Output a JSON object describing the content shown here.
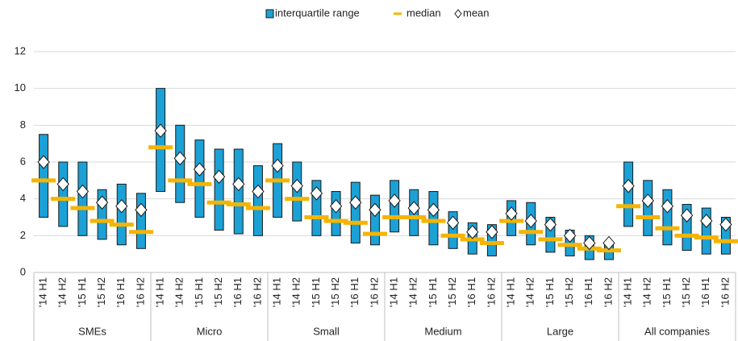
{
  "chart_data": {
    "type": "box",
    "ylim": [
      0,
      12
    ],
    "yticks": [
      0,
      2,
      4,
      6,
      8,
      10,
      12
    ],
    "grid": true,
    "groups": [
      {
        "name": "SMEs",
        "categories": [
          "'14 H1",
          "'14 H2",
          "'15 H1",
          "'15 H2",
          "'16 H1",
          "'16 H2"
        ]
      },
      {
        "name": "Micro",
        "categories": [
          "'14 H1",
          "'14 H2",
          "'15 H1",
          "'15 H2",
          "'16 H1",
          "'16 H2"
        ]
      },
      {
        "name": "Small",
        "categories": [
          "'14 H1",
          "'14 H2",
          "'15 H1",
          "'15 H2",
          "'16 H1",
          "'16 H2"
        ]
      },
      {
        "name": "Medium",
        "categories": [
          "'14 H1",
          "'14 H2",
          "'15 H1",
          "'15 H2",
          "'16 H1",
          "'16 H2"
        ]
      },
      {
        "name": "Large",
        "categories": [
          "'14 H1",
          "'14 H2",
          "'15 H1",
          "'15 H2",
          "'16 H1",
          "'16 H2"
        ]
      },
      {
        "name": "All companies",
        "categories": [
          "'14 H1",
          "'14 H2",
          "'15 H1",
          "'15 H2",
          "'16 H1",
          "'16 H2"
        ]
      }
    ],
    "series": [
      {
        "name": "interquartile range",
        "color": "#1ba1d6",
        "low": [
          3.0,
          2.5,
          2.0,
          1.8,
          1.5,
          1.3,
          4.4,
          3.8,
          3.0,
          2.3,
          2.1,
          2.0,
          3.0,
          2.8,
          2.0,
          2.0,
          1.6,
          1.5,
          2.2,
          2.0,
          1.5,
          1.3,
          1.0,
          0.9,
          2.0,
          1.5,
          1.1,
          0.9,
          0.7,
          0.7,
          2.5,
          2.0,
          1.5,
          1.2,
          1.0,
          1.0
        ],
        "high": [
          7.5,
          6.0,
          6.0,
          4.5,
          4.8,
          4.3,
          10.0,
          8.0,
          7.2,
          6.7,
          6.7,
          5.8,
          7.0,
          6.0,
          5.0,
          4.4,
          4.9,
          4.2,
          5.0,
          4.5,
          4.4,
          3.3,
          2.7,
          2.6,
          3.9,
          3.8,
          3.0,
          2.3,
          2.0,
          1.6,
          6.0,
          5.0,
          4.5,
          3.7,
          3.5,
          3.0
        ]
      },
      {
        "name": "median",
        "color": "#f5b400",
        "values": [
          5.0,
          4.0,
          3.5,
          2.8,
          2.6,
          2.2,
          6.8,
          5.0,
          4.8,
          3.8,
          3.7,
          3.5,
          5.0,
          4.0,
          3.0,
          2.8,
          2.7,
          2.1,
          3.0,
          3.0,
          2.8,
          2.0,
          1.8,
          1.6,
          2.8,
          2.2,
          1.8,
          1.5,
          1.3,
          1.2,
          3.6,
          3.0,
          2.4,
          2.0,
          1.9,
          1.7
        ]
      },
      {
        "name": "mean",
        "color": "#ffffff",
        "values": [
          6.0,
          4.8,
          4.4,
          3.8,
          3.6,
          3.4,
          7.7,
          6.2,
          5.6,
          5.2,
          4.8,
          4.4,
          5.8,
          4.7,
          4.3,
          3.6,
          3.8,
          3.4,
          3.9,
          3.5,
          3.4,
          2.7,
          2.2,
          2.2,
          3.2,
          2.8,
          2.6,
          2.0,
          1.6,
          1.6,
          4.7,
          3.9,
          3.6,
          3.1,
          2.8,
          2.6
        ]
      }
    ]
  }
}
